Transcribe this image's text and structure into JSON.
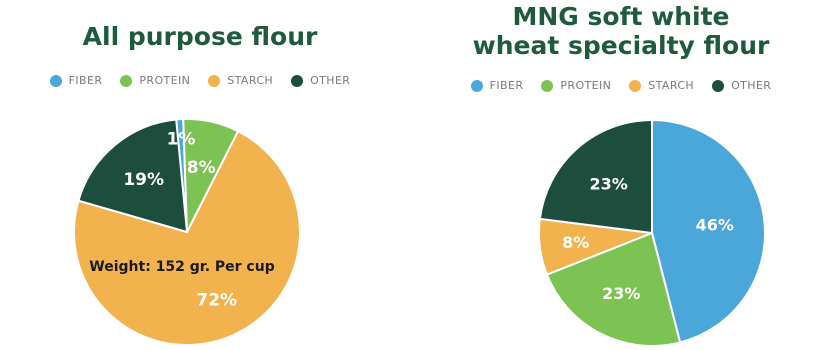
{
  "chart_data": [
    {
      "type": "pie",
      "title": "All purpose flour",
      "legend": [
        "FIBER",
        "PROTEIN",
        "STARCH",
        "OTHER"
      ],
      "legend_position": "top",
      "slices": [
        {
          "label": "FIBER",
          "value": 1,
          "display": "1%",
          "color": "#4ba6d9"
        },
        {
          "label": "PROTEIN",
          "value": 8,
          "display": "8%",
          "color": "#7cc354"
        },
        {
          "label": "STARCH",
          "value": 72,
          "display": "72%",
          "color": "#f2b24d"
        },
        {
          "label": "OTHER",
          "value": 19,
          "display": "19%",
          "color": "#1d4d3c"
        }
      ],
      "annotation": "Weight: 152 gr. Per cup"
    },
    {
      "type": "pie",
      "title": "MNG soft white wheat specialty flour",
      "title_lines": [
        "MNG soft white",
        "wheat specialty flour"
      ],
      "legend": [
        "FIBER",
        "PROTEIN",
        "STARCH",
        "OTHER"
      ],
      "legend_position": "top",
      "slices": [
        {
          "label": "FIBER",
          "value": 46,
          "display": "46%",
          "color": "#4ba6d9"
        },
        {
          "label": "PROTEIN",
          "value": 23,
          "display": "23%",
          "color": "#7cc354"
        },
        {
          "label": "STARCH",
          "value": 8,
          "display": "8%",
          "color": "#f2b24d"
        },
        {
          "label": "OTHER",
          "value": 23,
          "display": "23%",
          "color": "#1d4d3c"
        }
      ]
    }
  ]
}
